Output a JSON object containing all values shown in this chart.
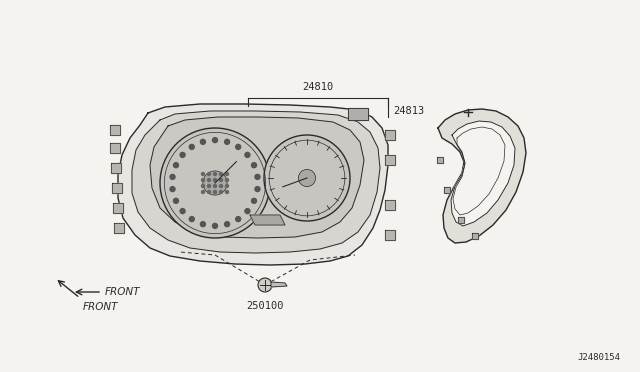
{
  "background_color": "#f5f3ef",
  "line_color": "#2a2a2a",
  "text_color": "#2a2a2a",
  "figsize": [
    6.4,
    3.72
  ],
  "dpi": 100,
  "label_24810": "24810",
  "label_24813": "24813",
  "label_250100": "250100",
  "label_front": "FRONT",
  "label_ref": "J2480154"
}
